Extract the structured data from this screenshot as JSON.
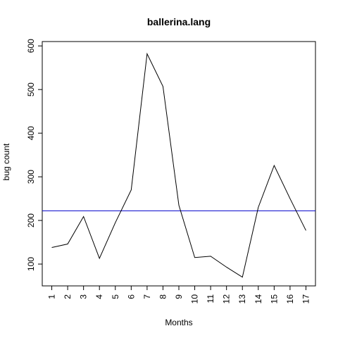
{
  "chart_data": {
    "type": "line",
    "title": "ballerina.lang",
    "xlabel": "Months",
    "ylabel": "bug count",
    "x": [
      1,
      2,
      3,
      4,
      5,
      6,
      7,
      8,
      9,
      10,
      11,
      12,
      13,
      14,
      15,
      16,
      17
    ],
    "x_tick_labels": [
      "1",
      "2",
      "3",
      "4",
      "5",
      "6",
      "7",
      "8",
      "9",
      "10",
      "11",
      "12",
      "13",
      "14",
      "15",
      "16",
      "17"
    ],
    "y_ticks": [
      100,
      200,
      300,
      400,
      500,
      600
    ],
    "y_tick_labels": [
      "100",
      "200",
      "300",
      "400",
      "500",
      "600"
    ],
    "series": [
      {
        "values": [
          138,
          146,
          209,
          113,
          195,
          270,
          582,
          507,
          235,
          115,
          118,
          93,
          70,
          230,
          326,
          250,
          177
        ],
        "color": "#000000"
      }
    ],
    "reference_line": {
      "y": 222,
      "color": "#0000cc"
    },
    "xlim": [
      0.4,
      17.6
    ],
    "ylim": [
      50,
      610
    ],
    "grid": false,
    "legend": "none"
  }
}
